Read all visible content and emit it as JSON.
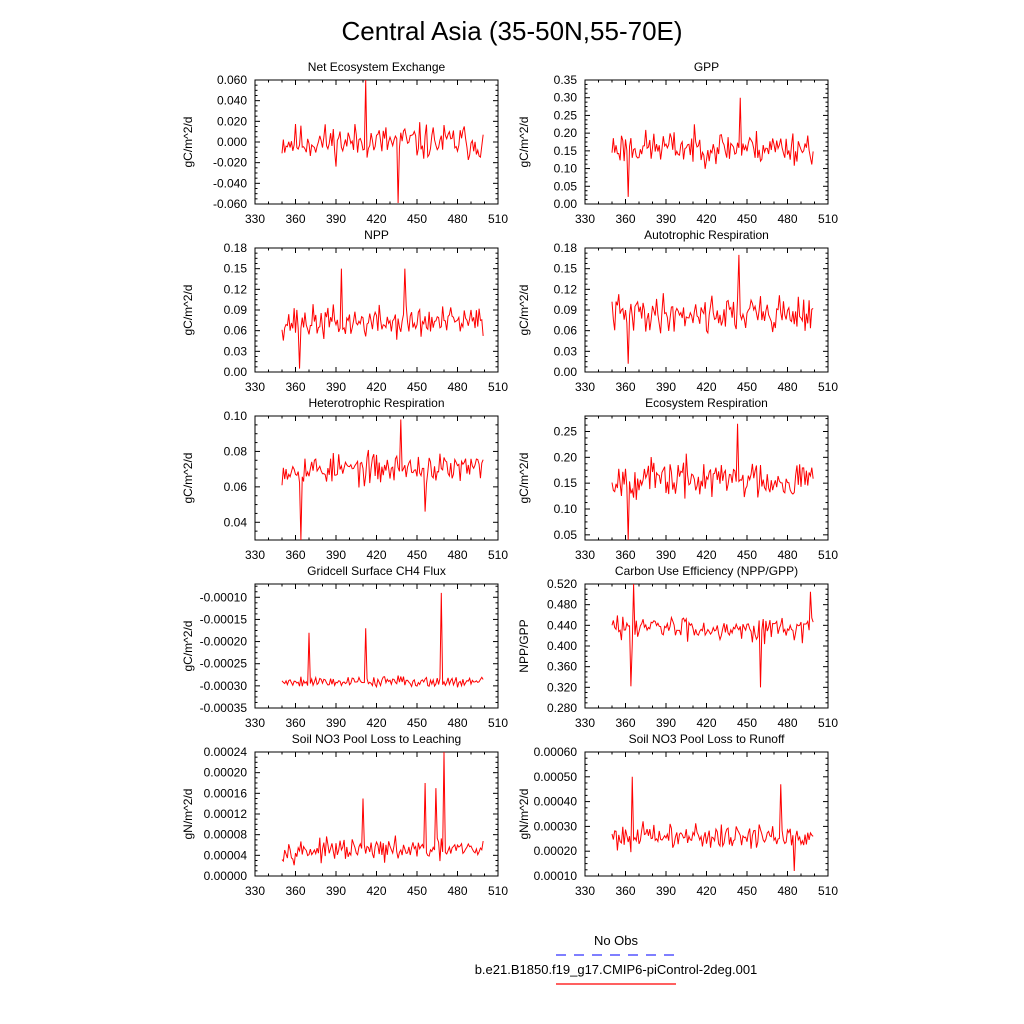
{
  "title": "Central Asia (35-50N,55-70E)",
  "colors": {
    "series": "#ff0000",
    "obs": "#3333ff",
    "axis": "#000000"
  },
  "legend": {
    "obs_label": "No Obs",
    "model_label": "b.e21.B1850.f19_g17.CMIP6-piControl-2deg.001"
  },
  "chart_data": [
    {
      "type": "line",
      "title": "Net Ecosystem Exchange",
      "ylabel": "gC/m^2/d",
      "xlim": [
        330,
        510
      ],
      "xticks": [
        330,
        360,
        390,
        420,
        450,
        480,
        510
      ],
      "ylim": [
        -0.06,
        0.06
      ],
      "yticks": [
        -0.06,
        -0.04,
        -0.02,
        0,
        0.02,
        0.04,
        0.06
      ],
      "ydec": 3,
      "x_start": 350,
      "x_end": 499,
      "n": 150,
      "base": 0.0,
      "amp": 0.026,
      "seed": 11,
      "spikes": [
        [
          412,
          0.061
        ],
        [
          436,
          -0.059
        ]
      ]
    },
    {
      "type": "line",
      "title": "GPP",
      "ylabel": "gC/m^2/d",
      "xlim": [
        330,
        510
      ],
      "xticks": [
        330,
        360,
        390,
        420,
        450,
        480,
        510
      ],
      "ylim": [
        0,
        0.35
      ],
      "yticks": [
        0,
        0.05,
        0.1,
        0.15,
        0.2,
        0.25,
        0.3,
        0.35
      ],
      "ydec": 2,
      "x_start": 350,
      "x_end": 499,
      "n": 150,
      "base": 0.16,
      "amp": 0.07,
      "seed": 23,
      "spikes": [
        [
          362,
          0.02
        ],
        [
          445,
          0.3
        ]
      ]
    },
    {
      "type": "line",
      "title": "NPP",
      "ylabel": "gC/m^2/d",
      "xlim": [
        330,
        510
      ],
      "xticks": [
        330,
        360,
        390,
        420,
        450,
        480,
        510
      ],
      "ylim": [
        0,
        0.18
      ],
      "yticks": [
        0,
        0.03,
        0.06,
        0.09,
        0.12,
        0.15,
        0.18
      ],
      "ydec": 2,
      "x_start": 350,
      "x_end": 499,
      "n": 150,
      "base": 0.072,
      "amp": 0.035,
      "seed": 37,
      "spikes": [
        [
          363,
          0.005
        ],
        [
          394,
          0.15
        ],
        [
          441,
          0.15
        ]
      ]
    },
    {
      "type": "line",
      "title": "Autotrophic Respiration",
      "ylabel": "gC/m^2/d",
      "xlim": [
        330,
        510
      ],
      "xticks": [
        330,
        360,
        390,
        420,
        450,
        480,
        510
      ],
      "ylim": [
        0,
        0.18
      ],
      "yticks": [
        0,
        0.03,
        0.06,
        0.09,
        0.12,
        0.15,
        0.18
      ],
      "ydec": 2,
      "x_start": 350,
      "x_end": 499,
      "n": 150,
      "base": 0.085,
      "amp": 0.04,
      "seed": 41,
      "spikes": [
        [
          362,
          0.012
        ],
        [
          444,
          0.17
        ]
      ]
    },
    {
      "type": "line",
      "title": "Heterotrophic Respiration",
      "ylabel": "gC/m^2/d",
      "xlim": [
        330,
        510
      ],
      "xticks": [
        330,
        360,
        390,
        420,
        450,
        480,
        510
      ],
      "ylim": [
        0.03,
        0.1
      ],
      "yticks": [
        0.04,
        0.06,
        0.08,
        0.1
      ],
      "ydec": 2,
      "x_start": 350,
      "x_end": 499,
      "n": 150,
      "base": 0.07,
      "amp": 0.013,
      "seed": 53,
      "spikes": [
        [
          364,
          0.03
        ],
        [
          438,
          0.098
        ],
        [
          456,
          0.046
        ]
      ]
    },
    {
      "type": "line",
      "title": "Ecosystem Respiration",
      "ylabel": "gC/m^2/d",
      "xlim": [
        330,
        510
      ],
      "xticks": [
        330,
        360,
        390,
        420,
        450,
        480,
        510
      ],
      "ylim": [
        0.04,
        0.28
      ],
      "yticks": [
        0.05,
        0.1,
        0.15,
        0.2,
        0.25
      ],
      "ydec": 2,
      "x_start": 350,
      "x_end": 499,
      "n": 150,
      "base": 0.158,
      "amp": 0.055,
      "seed": 67,
      "spikes": [
        [
          362,
          0.04
        ],
        [
          443,
          0.265
        ]
      ]
    },
    {
      "type": "line",
      "title": "Gridcell Surface CH4 Flux",
      "ylabel": "gC/m^2/d",
      "xlim": [
        330,
        510
      ],
      "xticks": [
        330,
        360,
        390,
        420,
        450,
        480,
        510
      ],
      "ylim": [
        -0.00035,
        -7e-05
      ],
      "yticks": [
        -0.00035,
        -0.0003,
        -0.00025,
        -0.0002,
        -0.00015,
        -0.0001
      ],
      "ydec": 5,
      "x_start": 350,
      "x_end": 499,
      "n": 150,
      "base": -0.00029,
      "amp": 1.8e-05,
      "seed": 79,
      "spikes": [
        [
          370,
          -0.00018
        ],
        [
          412,
          -0.00017
        ],
        [
          468,
          -9e-05
        ]
      ]
    },
    {
      "type": "line",
      "title": "Carbon Use Efficiency (NPP/GPP)",
      "ylabel": "NPP/GPP",
      "xlim": [
        330,
        510
      ],
      "xticks": [
        330,
        360,
        390,
        420,
        450,
        480,
        510
      ],
      "ylim": [
        0.28,
        0.52
      ],
      "yticks": [
        0.28,
        0.32,
        0.36,
        0.4,
        0.44,
        0.48,
        0.52
      ],
      "ydec": 3,
      "x_start": 350,
      "x_end": 499,
      "n": 150,
      "base": 0.435,
      "amp": 0.035,
      "seed": 83,
      "spikes": [
        [
          366,
          0.52
        ],
        [
          364,
          0.322
        ],
        [
          460,
          0.32
        ],
        [
          497,
          0.505
        ]
      ]
    },
    {
      "type": "line",
      "title": "Soil NO3 Pool Loss to Leaching",
      "ylabel": "gN/m^2/d",
      "xlim": [
        330,
        510
      ],
      "xticks": [
        330,
        360,
        390,
        420,
        450,
        480,
        510
      ],
      "ylim": [
        0,
        0.00024
      ],
      "yticks": [
        0,
        4e-05,
        8e-05,
        0.00012,
        0.00016,
        0.0002,
        0.00024
      ],
      "ydec": 5,
      "x_start": 350,
      "x_end": 499,
      "n": 150,
      "base": 5e-05,
      "amp": 3e-05,
      "seed": 97,
      "spikes": [
        [
          470,
          0.00024
        ],
        [
          456,
          0.00018
        ],
        [
          464,
          0.00017
        ],
        [
          410,
          0.00015
        ]
      ]
    },
    {
      "type": "line",
      "title": "Soil NO3 Pool Loss to Runoff",
      "ylabel": "gN/m^2/d",
      "xlim": [
        330,
        510
      ],
      "xticks": [
        330,
        360,
        390,
        420,
        450,
        480,
        510
      ],
      "ylim": [
        0.0001,
        0.0006
      ],
      "yticks": [
        0.0001,
        0.0002,
        0.0003,
        0.0004,
        0.0005,
        0.0006
      ],
      "ydec": 5,
      "x_start": 350,
      "x_end": 499,
      "n": 150,
      "base": 0.00026,
      "amp": 7.5e-05,
      "seed": 101,
      "spikes": [
        [
          365,
          0.0005
        ],
        [
          475,
          0.00047
        ],
        [
          485,
          0.00012
        ]
      ]
    }
  ]
}
